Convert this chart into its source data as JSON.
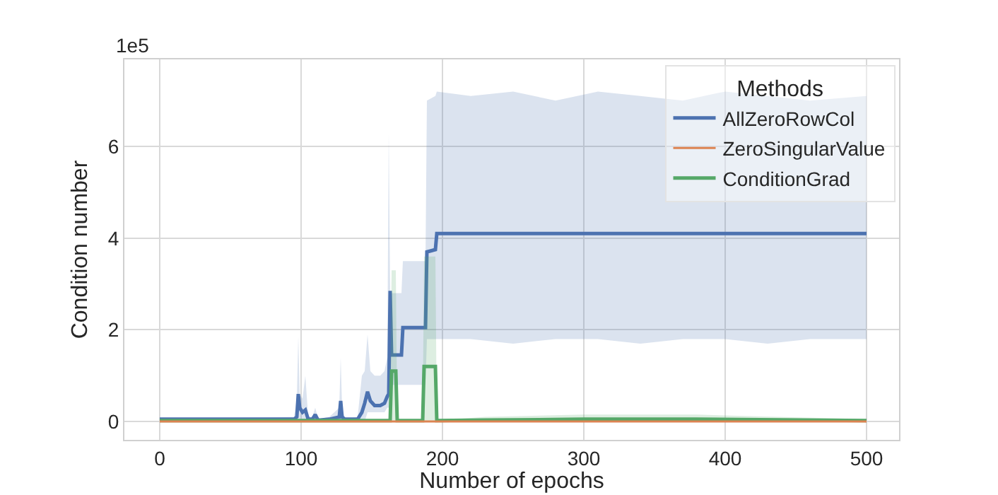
{
  "chart_data": {
    "type": "line",
    "xlabel": "Number of epochs",
    "ylabel": "Condition number",
    "legend_title": "Methods",
    "annotations": [
      "1e5"
    ],
    "xlim": [
      -25,
      523
    ],
    "xticks": [
      0,
      100,
      200,
      300,
      400,
      500
    ],
    "ylim": [
      -0.4,
      7.9
    ],
    "yticks": [
      0,
      2,
      4,
      6
    ],
    "grid": true,
    "legend": "top right",
    "line_style": "solid",
    "marker": "none",
    "series": [
      {
        "name": "AllZeroRowCol",
        "color": "#4c72b0",
        "x": [
          0,
          95,
          97,
          98,
          99,
          101,
          103,
          105,
          108,
          110,
          112,
          120,
          127,
          128,
          129,
          131,
          140,
          143,
          145,
          147,
          149,
          152,
          156,
          159,
          161,
          162,
          163,
          164,
          171,
          172,
          188,
          189,
          195,
          196,
          220,
          250,
          280,
          310,
          340,
          370,
          400,
          430,
          460,
          500
        ],
        "values": [
          0.05,
          0.05,
          0.1,
          0.6,
          0.3,
          0.2,
          0.25,
          0.05,
          0.05,
          0.15,
          0.03,
          0.05,
          0.1,
          0.45,
          0.1,
          0.05,
          0.05,
          0.2,
          0.4,
          0.65,
          0.45,
          0.35,
          0.35,
          0.4,
          0.55,
          0.6,
          2.85,
          1.45,
          1.45,
          2.05,
          2.05,
          3.7,
          3.75,
          4.1,
          4.1,
          4.1,
          4.1,
          4.1,
          4.1,
          4.1,
          4.1,
          4.1,
          4.1,
          4.1
        ],
        "upper": [
          0.05,
          0.1,
          0.5,
          1.85,
          0.6,
          0.5,
          1.0,
          0.1,
          0.1,
          0.3,
          0.05,
          0.1,
          0.3,
          1.4,
          0.3,
          0.05,
          0.1,
          1.0,
          1.1,
          1.9,
          1.1,
          1.0,
          1.0,
          1.1,
          1.4,
          6.3,
          2.8,
          2.8,
          2.8,
          3.5,
          3.5,
          7.0,
          7.1,
          7.2,
          7.1,
          7.2,
          7.0,
          7.2,
          7.1,
          7.0,
          7.2,
          7.1,
          7.0,
          7.1
        ],
        "lower": [
          0,
          0,
          0,
          0,
          0,
          0,
          0,
          0,
          0,
          0,
          0,
          0,
          0,
          0,
          0,
          0,
          0,
          0,
          0,
          0.2,
          0.2,
          0.2,
          0.2,
          0.2,
          0.3,
          0.3,
          0.3,
          0.8,
          0.8,
          0.8,
          0.8,
          1.8,
          1.8,
          1.8,
          1.8,
          1.7,
          1.8,
          1.8,
          1.7,
          1.8,
          1.8,
          1.7,
          1.8,
          1.8
        ]
      },
      {
        "name": "ZeroSingularValue",
        "color": "#dd8452",
        "x": [
          0,
          500
        ],
        "values": [
          0,
          0
        ]
      },
      {
        "name": "ConditionGrad",
        "color": "#55a868",
        "x": [
          0,
          163,
          164,
          167,
          168,
          186,
          187,
          195,
          196,
          230,
          300,
          380,
          500
        ],
        "values": [
          0.02,
          0.02,
          1.1,
          1.1,
          0.02,
          0.02,
          1.2,
          1.2,
          0.02,
          0.03,
          0.05,
          0.05,
          0.02
        ],
        "upper": [
          0.02,
          0.02,
          3.3,
          3.3,
          0.02,
          0.02,
          3.6,
          3.6,
          0.02,
          0.1,
          0.15,
          0.15,
          0.05
        ],
        "lower": [
          0.02,
          0.02,
          0,
          0,
          0.02,
          0.02,
          0,
          0,
          0.02,
          0,
          0,
          0,
          0
        ]
      }
    ]
  }
}
